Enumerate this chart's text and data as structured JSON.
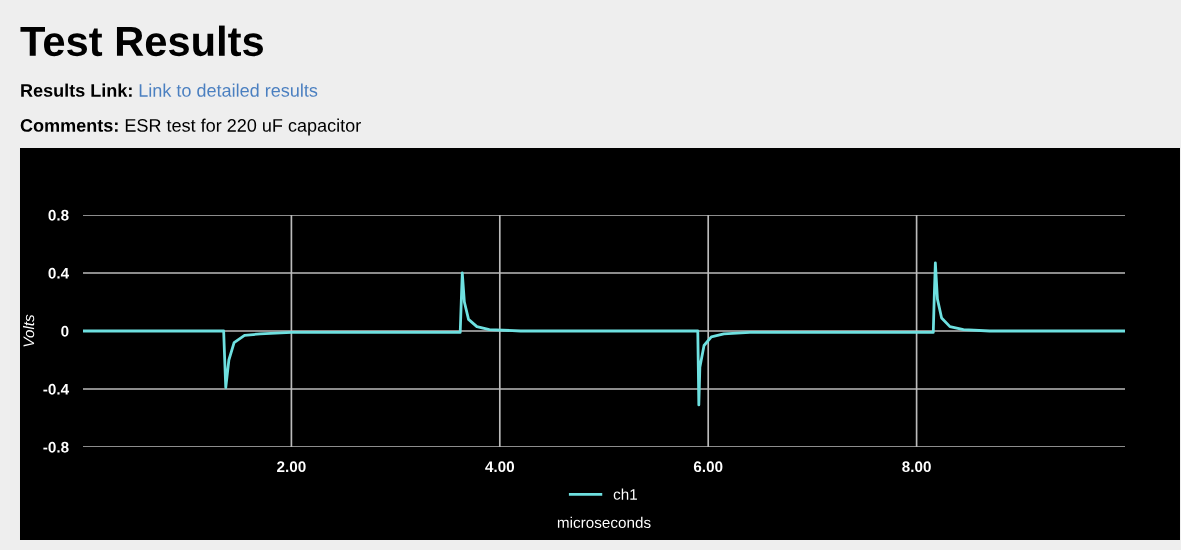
{
  "chart_data": {
    "type": "line",
    "title": "Test Results",
    "annotations": [
      "Results Link:",
      "Link to detailed results",
      "Comments:",
      "ESR test for 220 uF capacitor"
    ],
    "xlabel": "microseconds",
    "ylabel": "Volts",
    "series": [
      {
        "name": "ch1",
        "color": "#6ee0e0",
        "x": [
          0,
          1.35,
          1.36,
          1.37,
          1.4,
          1.45,
          1.55,
          1.7,
          2.0,
          3.62,
          3.63,
          3.64,
          3.66,
          3.7,
          3.78,
          3.9,
          4.2,
          5.9,
          5.905,
          5.91,
          5.92,
          5.96,
          6.03,
          6.15,
          6.4,
          8.16,
          8.17,
          8.18,
          8.2,
          8.24,
          8.32,
          8.45,
          8.7,
          10
        ],
        "values": [
          0,
          0,
          -0.2,
          -0.39,
          -0.2,
          -0.08,
          -0.03,
          -0.02,
          -0.01,
          -0.01,
          0.2,
          0.4,
          0.2,
          0.08,
          0.03,
          0.01,
          0,
          0,
          -0.25,
          -0.51,
          -0.25,
          -0.1,
          -0.04,
          -0.02,
          -0.01,
          -0.01,
          0.25,
          0.47,
          0.22,
          0.09,
          0.03,
          0.01,
          0,
          0
        ]
      }
    ],
    "xlim": [
      0,
      10
    ],
    "xticks": [
      {
        "value": 2,
        "label": "2.00"
      },
      {
        "value": 4,
        "label": "4.00"
      },
      {
        "value": 6,
        "label": "6.00"
      },
      {
        "value": 8,
        "label": "8.00"
      }
    ],
    "ylim": [
      -0.8,
      0.8
    ],
    "yticks": [
      {
        "value": -0.8,
        "label": "-0.8"
      },
      {
        "value": -0.4,
        "label": "-0.4"
      },
      0,
      0.4,
      0.8
    ],
    "grid": true,
    "legend": "bottom",
    "marker": "none",
    "line_style": "solid"
  }
}
